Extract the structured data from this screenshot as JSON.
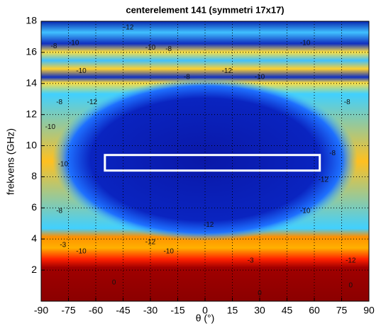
{
  "chart_data": {
    "type": "heatmap",
    "title": "centerelement 141 (symmetri 17x17)",
    "x_label": "θ (°)",
    "y_label": "frekvens (GHz)",
    "xlim": [
      -90,
      90
    ],
    "xticks": [
      -90,
      -75,
      -60,
      -45,
      -30,
      -15,
      0,
      15,
      30,
      45,
      60,
      75,
      90
    ],
    "ylim": [
      0,
      18
    ],
    "yticks": [
      2,
      4,
      6,
      8,
      10,
      12,
      14,
      16,
      18
    ],
    "grid": true,
    "highlight": {
      "x": [
        -55,
        63
      ],
      "y": [
        8.4,
        9.4
      ],
      "color": "#ffffff"
    },
    "contour_labels": [
      {
        "text": "-12",
        "x": -42,
        "y": 17.6
      },
      {
        "text": "-10",
        "x": -72,
        "y": 16.6
      },
      {
        "text": "-8",
        "x": -83,
        "y": 16.4
      },
      {
        "text": "-10",
        "x": -30,
        "y": 16.3
      },
      {
        "text": "-8",
        "x": -20,
        "y": 16.2
      },
      {
        "text": "-10",
        "x": 55,
        "y": 16.6
      },
      {
        "text": "-10",
        "x": -68,
        "y": 14.8
      },
      {
        "text": "-8",
        "x": -10,
        "y": 14.4
      },
      {
        "text": "-12",
        "x": 12,
        "y": 14.8
      },
      {
        "text": "-10",
        "x": 30,
        "y": 14.4
      },
      {
        "text": "-8",
        "x": -80,
        "y": 12.8
      },
      {
        "text": "-12",
        "x": -62,
        "y": 12.8
      },
      {
        "text": "-8",
        "x": 78,
        "y": 12.8
      },
      {
        "text": "-10",
        "x": -85,
        "y": 11.2
      },
      {
        "text": "-10",
        "x": -78,
        "y": 8.8
      },
      {
        "text": "-8",
        "x": 70,
        "y": 9.5
      },
      {
        "text": "-12",
        "x": 65,
        "y": 7.8
      },
      {
        "text": "-10",
        "x": 55,
        "y": 5.8
      },
      {
        "text": "-8",
        "x": -80,
        "y": 5.8
      },
      {
        "text": "-12",
        "x": 2,
        "y": 4.9
      },
      {
        "text": "-12",
        "x": -30,
        "y": 3.8
      },
      {
        "text": "-10",
        "x": -20,
        "y": 3.2
      },
      {
        "text": "-3",
        "x": -78,
        "y": 3.6
      },
      {
        "text": "-10",
        "x": -68,
        "y": 3.2
      },
      {
        "text": "-3",
        "x": 25,
        "y": 2.6
      },
      {
        "text": "-12",
        "x": 80,
        "y": 2.6
      },
      {
        "text": "0",
        "x": -50,
        "y": 1.2
      },
      {
        "text": "0",
        "x": 30,
        "y": 0.5
      },
      {
        "text": "0",
        "x": 80,
        "y": 1.0
      }
    ]
  }
}
